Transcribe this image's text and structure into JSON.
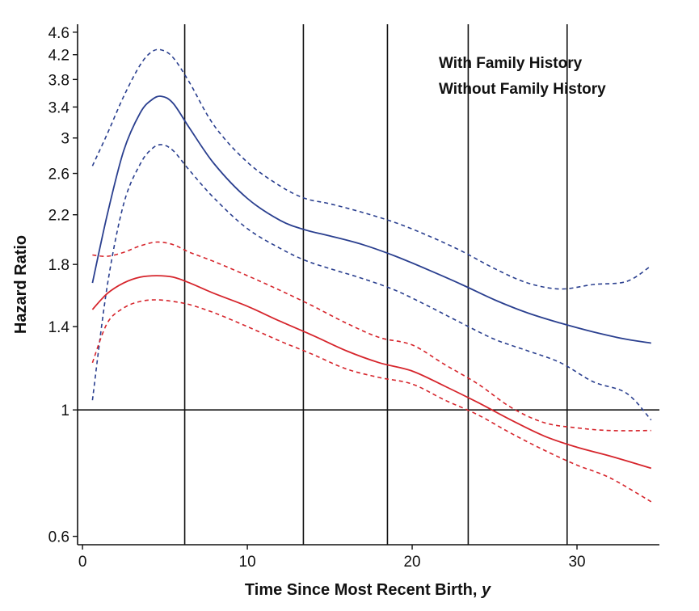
{
  "chart_data": {
    "type": "line",
    "xlabel": "Time Since Most Recent Birth, ",
    "xlabel_italic": "y",
    "ylabel": "Hazard Ratio",
    "y_scale": "log",
    "xlim": [
      -0.3,
      35
    ],
    "ylim": [
      0.58,
      4.75
    ],
    "x_ticks": [
      0,
      10,
      20,
      30
    ],
    "x_tick_labels": [
      "0",
      "10",
      "20",
      "30"
    ],
    "y_ticks": [
      0.6,
      1,
      1.4,
      1.8,
      2.2,
      2.6,
      3,
      3.4,
      3.8,
      4.2,
      4.6
    ],
    "y_tick_labels": [
      "0.6",
      "1",
      "1.4",
      "1.8",
      "2.2",
      "2.6",
      "3",
      "3.4",
      "3.8",
      "4.2",
      "4.6"
    ],
    "reference_line_y": 1,
    "vertical_lines_x": [
      6.2,
      13.4,
      18.5,
      23.4,
      29.4
    ],
    "legend_position": "top-right",
    "colors": {
      "with": "#2a3f8f",
      "without": "#d6252c",
      "grid": "#111111"
    },
    "series": [
      {
        "name": "With Family History",
        "key": "with",
        "color": "#2a3f8f",
        "x": [
          0.6,
          1.5,
          2.5,
          3.5,
          4.2,
          4.8,
          5.5,
          6.5,
          8,
          10,
          12,
          13.5,
          15,
          17,
          19,
          21,
          23,
          25,
          27,
          29,
          31,
          33,
          34.5
        ],
        "hr": [
          1.67,
          2.2,
          2.85,
          3.32,
          3.5,
          3.55,
          3.45,
          3.12,
          2.7,
          2.35,
          2.15,
          2.07,
          2.02,
          1.95,
          1.86,
          1.76,
          1.66,
          1.56,
          1.48,
          1.42,
          1.37,
          1.33,
          1.31
        ],
        "lower": [
          1.04,
          1.65,
          2.3,
          2.7,
          2.87,
          2.92,
          2.85,
          2.63,
          2.35,
          2.08,
          1.92,
          1.83,
          1.77,
          1.7,
          1.62,
          1.52,
          1.42,
          1.33,
          1.27,
          1.21,
          1.12,
          1.07,
          0.96
        ],
        "upper": [
          2.68,
          3.05,
          3.55,
          4.03,
          4.25,
          4.28,
          4.15,
          3.75,
          3.15,
          2.72,
          2.47,
          2.35,
          2.3,
          2.22,
          2.13,
          2.02,
          1.9,
          1.77,
          1.67,
          1.63,
          1.66,
          1.68,
          1.79
        ]
      },
      {
        "name": "Without Family History",
        "key": "without",
        "color": "#d6252c",
        "x": [
          0.6,
          1.5,
          2.5,
          3.5,
          4.5,
          5.5,
          6.5,
          8,
          10,
          12,
          14,
          16,
          18,
          20,
          22,
          24,
          26,
          28,
          30,
          32,
          34.5
        ],
        "hr": [
          1.5,
          1.6,
          1.67,
          1.71,
          1.72,
          1.71,
          1.67,
          1.6,
          1.52,
          1.43,
          1.35,
          1.27,
          1.21,
          1.17,
          1.1,
          1.03,
          0.96,
          0.9,
          0.86,
          0.83,
          0.79
        ],
        "lower": [
          1.21,
          1.42,
          1.51,
          1.55,
          1.56,
          1.55,
          1.53,
          1.48,
          1.4,
          1.32,
          1.25,
          1.18,
          1.14,
          1.11,
          1.04,
          0.98,
          0.91,
          0.85,
          0.8,
          0.76,
          0.69
        ],
        "upper": [
          1.87,
          1.86,
          1.89,
          1.94,
          1.97,
          1.95,
          1.89,
          1.82,
          1.72,
          1.62,
          1.52,
          1.42,
          1.34,
          1.3,
          1.2,
          1.11,
          1.01,
          0.95,
          0.93,
          0.92,
          0.92
        ]
      }
    ]
  }
}
